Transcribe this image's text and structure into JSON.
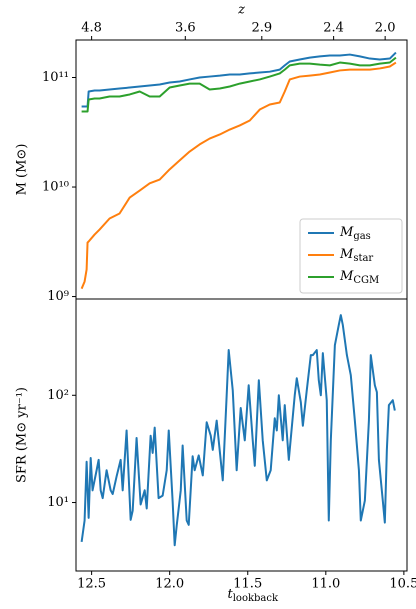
{
  "chart_data": [
    {
      "type": "line",
      "ylabel": "M (M⊙)",
      "x2label": "z",
      "log_y": true,
      "legend": "lower right",
      "xlim": [
        12.6,
        10.48
      ],
      "ylim": [
        950000000.0,
        220000000000.0
      ],
      "yticks": [
        {
          "value": 1000000000.0,
          "label": "10⁹"
        },
        {
          "value": 10000000000.0,
          "label": "10¹⁰"
        },
        {
          "value": 100000000000.0,
          "label": "10¹¹"
        }
      ],
      "x2ticks": [
        4.8,
        3.6,
        2.9,
        2.4,
        {
          "value": 2.0,
          "label": "2.0"
        }
      ],
      "x2tick_positions": [
        12.5,
        11.9,
        11.41,
        10.95,
        10.62
      ],
      "x": [
        12.564,
        12.545,
        12.532,
        12.526,
        12.519,
        12.481,
        12.449,
        12.385,
        12.321,
        12.256,
        12.192,
        12.128,
        12.064,
        12.0,
        11.936,
        11.872,
        11.808,
        11.744,
        11.679,
        11.615,
        11.551,
        11.487,
        11.423,
        11.359,
        11.295,
        11.263,
        11.231,
        11.167,
        11.103,
        11.038,
        10.974,
        10.91,
        10.846,
        10.782,
        10.718,
        10.654,
        10.59,
        10.551
      ],
      "series": [
        {
          "name": "Mgas",
          "color": "#1f77b4",
          "values": [
            54300000000.0,
            54300000000.0,
            54300000000.0,
            54300000000.0,
            74500000000.0,
            76100000000.0,
            76100000000.0,
            77700000000.0,
            79300000000.0,
            81000000000.0,
            82800000000.0,
            84500000000.0,
            86300000000.0,
            90000000000.0,
            92000000000.0,
            96000000000.0,
            100000000000.0,
            102000000000.0,
            104000000000.0,
            106500000000.0,
            106500000000.0,
            109000000000.0,
            111000000000.0,
            113000000000.0,
            118000000000.0,
            129000000000.0,
            140000000000.0,
            146000000000.0,
            152000000000.0,
            156000000000.0,
            159000000000.0,
            159000000000.0,
            162000000000.0,
            156000000000.0,
            149000000000.0,
            146000000000.0,
            149000000000.0,
            169000000000.0
          ]
        },
        {
          "name": "Mstar",
          "color": "#ff7f0e",
          "values": [
            1180000000.0,
            1370000000.0,
            1770000000.0,
            3110000000.0,
            3180000000.0,
            3680000000.0,
            4090000000.0,
            5160000000.0,
            5730000000.0,
            8020000000.0,
            9290000000.0,
            10800000000.0,
            11700000000.0,
            14500000000.0,
            17500000000.0,
            21100000000.0,
            24500000000.0,
            27700000000.0,
            30200000000.0,
            33500000000.0,
            36500000000.0,
            40500000000.0,
            51000000000.0,
            56700000000.0,
            59100000000.0,
            74500000000.0,
            96000000000.0,
            102000000000.0,
            104000000000.0,
            106500000000.0,
            111000000000.0,
            116000000000.0,
            118000000000.0,
            118000000000.0,
            118000000000.0,
            121000000000.0,
            126000000000.0,
            137000000000.0
          ]
        },
        {
          "name": "MCGM",
          "color": "#2ca02c",
          "values": [
            48900000000.0,
            48900000000.0,
            48900000000.0,
            48900000000.0,
            63000000000.0,
            64300000000.0,
            64300000000.0,
            67100000000.0,
            67100000000.0,
            70000000000.0,
            74500000000.0,
            67100000000.0,
            67100000000.0,
            81000000000.0,
            84500000000.0,
            88000000000.0,
            88000000000.0,
            77700000000.0,
            79300000000.0,
            82800000000.0,
            88000000000.0,
            92000000000.0,
            96000000000.0,
            102000000000.0,
            109000000000.0,
            118000000000.0,
            129000000000.0,
            134000000000.0,
            134000000000.0,
            131000000000.0,
            129000000000.0,
            137000000000.0,
            134000000000.0,
            129000000000.0,
            129000000000.0,
            134000000000.0,
            137000000000.0,
            152000000000.0
          ]
        }
      ]
    },
    {
      "type": "line",
      "ylabel": "SFR (M⊙ yr⁻¹)",
      "xlabel": "tlookback",
      "log_y": true,
      "xlim": [
        12.6,
        10.48
      ],
      "ylim": [
        2.3,
        790
      ],
      "yticks": [
        {
          "value": 10,
          "label": "10¹"
        },
        {
          "value": 100,
          "label": "10²"
        }
      ],
      "xticks": [
        12.5,
        {
          "value": 12,
          "label": "12.0"
        },
        11.5,
        {
          "value": 11,
          "label": "11.0"
        },
        10.5
      ],
      "color": "#1f77b4",
      "x": [
        12.564,
        12.545,
        12.532,
        12.519,
        12.506,
        12.494,
        12.468,
        12.455,
        12.442,
        12.429,
        12.404,
        12.378,
        12.365,
        12.34,
        12.314,
        12.301,
        12.276,
        12.25,
        12.237,
        12.212,
        12.186,
        12.16,
        12.147,
        12.122,
        12.109,
        12.096,
        12.071,
        12.045,
        12.019,
        12.006,
        11.981,
        11.968,
        11.955,
        11.929,
        11.917,
        11.891,
        11.878,
        11.853,
        11.84,
        11.814,
        11.788,
        11.763,
        11.737,
        11.724,
        11.699,
        11.66,
        11.635,
        11.622,
        11.596,
        11.571,
        11.545,
        11.519,
        11.494,
        11.468,
        11.455,
        11.429,
        11.404,
        11.378,
        11.353,
        11.327,
        11.314,
        11.301,
        11.276,
        11.263,
        11.237,
        11.199,
        11.186,
        11.16,
        11.147,
        11.122,
        11.096,
        11.083,
        11.058,
        11.045,
        11.032,
        11.019,
        10.994,
        10.981,
        10.968,
        10.942,
        10.917,
        10.904,
        10.891,
        10.865,
        10.84,
        10.814,
        10.788,
        10.776,
        10.75,
        10.724,
        10.712,
        10.686,
        10.673,
        10.66,
        10.635,
        10.622,
        10.609,
        10.596,
        10.571,
        10.558
      ],
      "values": [
        4.3,
        6.8,
        24,
        7.2,
        26,
        13,
        20,
        25,
        13,
        11,
        20,
        13,
        12,
        17.5,
        25,
        13,
        47,
        6.9,
        8.4,
        40,
        9.6,
        13,
        8.8,
        42,
        29,
        50,
        11,
        11.6,
        20,
        47,
        10.2,
        4.0,
        6.1,
        13,
        34,
        6.8,
        6.2,
        27,
        20,
        27.5,
        17.9,
        56,
        42,
        31,
        58,
        16.1,
        100,
        264,
        111,
        20,
        76,
        38,
        124,
        38,
        22,
        138,
        38,
        16.1,
        20,
        61,
        47,
        100,
        38,
        81,
        25,
        100,
        144,
        86,
        52,
        111,
        237,
        237,
        264,
        138,
        100,
        247,
        90,
        6.8,
        38,
        293,
        451,
        559,
        451,
        237,
        154,
        58,
        20,
        6.8,
        10.4,
        58,
        237,
        124,
        107,
        25,
        10.4,
        6.5,
        31,
        81,
        90,
        72
      ]
    }
  ]
}
